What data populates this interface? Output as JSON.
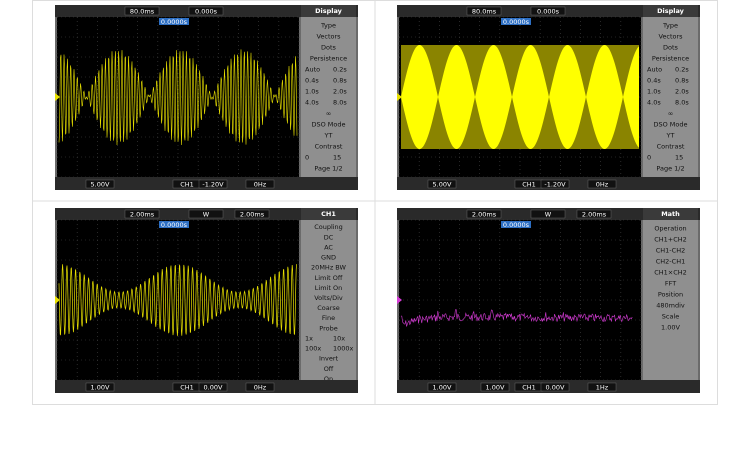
{
  "panels": [
    {
      "toolbar": [
        "80.0ms",
        "0.000s",
        "0.0000s"
      ],
      "menu": [
        [
          "Display"
        ],
        [
          "Type"
        ],
        [
          "Vectors"
        ],
        [
          "Dots"
        ],
        [
          "Persistence"
        ],
        [
          "Auto",
          "0.2s"
        ],
        [
          "0.4s",
          "0.8s"
        ],
        [
          "1.0s",
          "2.0s"
        ],
        [
          "4.0s",
          "8.0s"
        ],
        [
          "∞"
        ],
        [
          "DSO Mode"
        ],
        [
          "YT"
        ],
        [
          "Contrast"
        ],
        [
          "0",
          "15"
        ],
        [
          "Page 1/2"
        ]
      ],
      "status": [
        "5.00V",
        "CH1",
        "-1.20V",
        "0Hz"
      ]
    },
    {
      "toolbar": [
        "80.0ms",
        "0.000s",
        "0.0000s"
      ],
      "menu": [
        [
          "Display"
        ],
        [
          "Type"
        ],
        [
          "Vectors"
        ],
        [
          "Dots"
        ],
        [
          "Persistence"
        ],
        [
          "Auto",
          "0.2s"
        ],
        [
          "0.4s",
          "0.8s"
        ],
        [
          "1.0s",
          "2.0s"
        ],
        [
          "4.0s",
          "8.0s"
        ],
        [
          "∞"
        ],
        [
          "DSO Mode"
        ],
        [
          "YT"
        ],
        [
          "Contrast"
        ],
        [
          "0",
          "15"
        ],
        [
          "Page 1/2"
        ]
      ],
      "status": [
        "5.00V",
        "CH1",
        "-1.20V",
        "0Hz"
      ]
    },
    {
      "toolbar": [
        "2.00ms",
        "W",
        "2.00ms",
        "0.0000s"
      ],
      "menu": [
        [
          "CH1"
        ],
        [
          "Coupling"
        ],
        [
          "DC"
        ],
        [
          "AC"
        ],
        [
          "GND"
        ],
        [
          "20MHz BW"
        ],
        [
          "Limit Off"
        ],
        [
          "Limit On"
        ],
        [
          "Volts/Div"
        ],
        [
          "Coarse"
        ],
        [
          "Fine"
        ],
        [
          "Probe"
        ],
        [
          "1x",
          "10x"
        ],
        [
          "100x",
          "1000x"
        ],
        [
          "Invert"
        ],
        [
          "Off"
        ],
        [
          "On"
        ]
      ],
      "status": [
        "1.00V",
        "CH1",
        "0.00V",
        "0Hz"
      ]
    },
    {
      "toolbar": [
        "2.00ms",
        "W",
        "2.00ms",
        "0.0000s"
      ],
      "menu": [
        [
          "Math"
        ],
        [
          "Operation"
        ],
        [
          "CH1+CH2"
        ],
        [
          "CH1-CH2"
        ],
        [
          "CH2-CH1"
        ],
        [
          "CH1×CH2"
        ],
        [
          "FFT"
        ],
        [
          "Position"
        ],
        [
          "480mdiv"
        ],
        [
          "Scale"
        ],
        [
          "1.00V"
        ]
      ],
      "status": [
        "1.00V",
        "1.00V",
        "CH1",
        "0.00V",
        "1Hz"
      ]
    }
  ]
}
